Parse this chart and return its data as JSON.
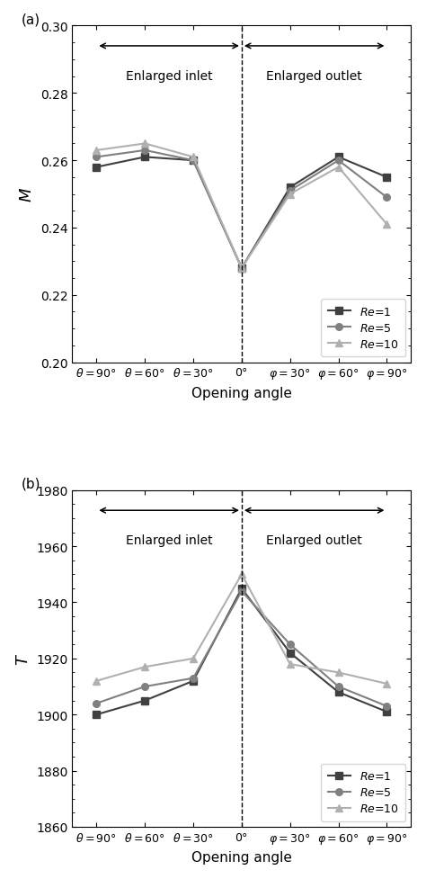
{
  "panel_a": {
    "ylabel": "$M$",
    "ylim": [
      0.2,
      0.3
    ],
    "yticks": [
      0.2,
      0.22,
      0.24,
      0.26,
      0.28,
      0.3
    ],
    "re1": [
      0.258,
      0.261,
      0.26,
      0.228,
      0.252,
      0.261,
      0.255
    ],
    "re5": [
      0.261,
      0.263,
      0.26,
      0.228,
      0.251,
      0.26,
      0.249
    ],
    "re10": [
      0.263,
      0.265,
      0.261,
      0.228,
      0.25,
      0.258,
      0.241
    ]
  },
  "panel_b": {
    "ylabel": "$T$",
    "ylim": [
      1860,
      1980
    ],
    "yticks": [
      1860,
      1880,
      1900,
      1920,
      1940,
      1960,
      1980
    ],
    "re1": [
      1900,
      1905,
      1912,
      1945,
      1922,
      1908,
      1901
    ],
    "re5": [
      1904,
      1910,
      1913,
      1944,
      1925,
      1910,
      1903
    ],
    "re10": [
      1912,
      1917,
      1920,
      1950,
      1918,
      1915,
      1911
    ]
  },
  "xtick_labels": [
    "θ=90°",
    "θ=60°",
    "θ=30°",
    "0°",
    "φ=30°",
    "φ=60°",
    "φ=90°"
  ],
  "xlabel": "Opening angle",
  "color_re1": "#404040",
  "color_re5": "#808080",
  "color_re10": "#b0b0b0",
  "inlet_label": "Enlarged inlet",
  "outlet_label": "Enlarged outlet"
}
